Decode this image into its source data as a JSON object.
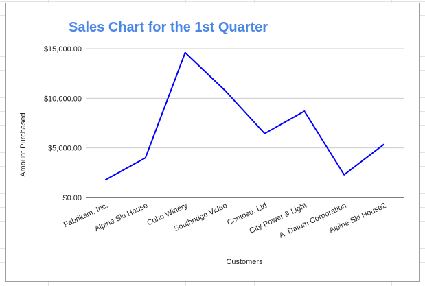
{
  "chart_data": {
    "type": "line",
    "title": "Sales Chart for the 1st Quarter",
    "xlabel": "Customers",
    "ylabel": "Amount Purchased",
    "categories": [
      "Fabrikam, Inc.",
      "Alpine Ski House",
      "Coho Winery",
      "Southridge Video",
      "Contoso, Ltd",
      "City Power & Light",
      "A. Datum Corporation",
      "Alpine Ski House2"
    ],
    "values": [
      1800,
      4000,
      14600,
      10800,
      6450,
      8700,
      2300,
      5350
    ],
    "ylim": [
      0,
      15000
    ],
    "yticks": [
      0,
      5000,
      10000,
      15000
    ],
    "ytick_labels": [
      "$0.00",
      "$5,000.00",
      "$10,000.00",
      "$15,000.00"
    ],
    "grid": true,
    "legend": "none",
    "colors": {
      "line": "#0000ff",
      "title": "#4a86e8",
      "gridline": "#cccccc",
      "baseline": "#333333"
    }
  }
}
